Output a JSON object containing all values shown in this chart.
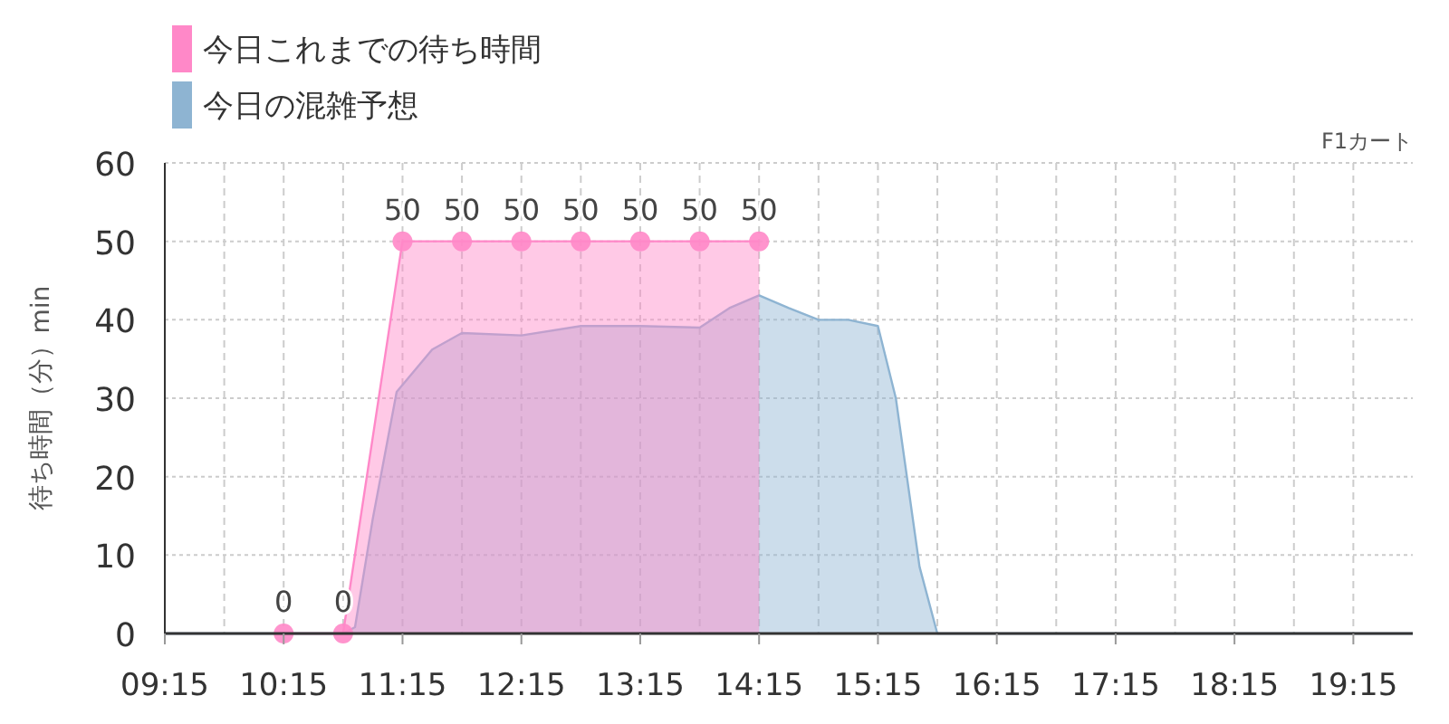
{
  "chart_data": {
    "type": "area",
    "ylabel": "待ち時間（分）min",
    "annotations": [
      "F1カート"
    ],
    "legend": "top left",
    "xlim": [
      9.25,
      19.75
    ],
    "xticks": [
      {
        "value": 9.25,
        "label": "09:15"
      },
      {
        "value": 9.75,
        "label": null
      },
      {
        "value": 10.25,
        "label": "10:15"
      },
      {
        "value": 10.75,
        "label": null
      },
      {
        "value": 11.25,
        "label": "11:15"
      },
      {
        "value": 11.75,
        "label": null
      },
      {
        "value": 12.25,
        "label": "12:15"
      },
      {
        "value": 12.75,
        "label": null
      },
      {
        "value": 13.25,
        "label": "13:15"
      },
      {
        "value": 13.75,
        "label": null
      },
      {
        "value": 14.25,
        "label": "14:15"
      },
      {
        "value": 14.75,
        "label": null
      },
      {
        "value": 15.25,
        "label": "15:15"
      },
      {
        "value": 15.75,
        "label": null
      },
      {
        "value": 16.25,
        "label": "16:15"
      },
      {
        "value": 16.75,
        "label": null
      },
      {
        "value": 17.25,
        "label": "17:15"
      },
      {
        "value": 17.75,
        "label": null
      },
      {
        "value": 18.25,
        "label": "18:15"
      },
      {
        "value": 18.75,
        "label": null
      },
      {
        "value": 19.25,
        "label": "19:15"
      }
    ],
    "ylim": [
      0,
      60
    ],
    "yticks": [
      0,
      10,
      20,
      30,
      40,
      50,
      60
    ],
    "grid": true,
    "series": [
      {
        "name": "今日の混雑予想",
        "color": "#8eb4d2",
        "x": [
          9.25,
          10.25,
          10.75,
          10.85,
          11.0,
          11.2,
          11.5,
          11.75,
          12.25,
          12.75,
          13.25,
          13.75,
          14.0,
          14.25,
          14.5,
          14.75,
          15.0,
          15.25,
          15.4,
          15.6,
          15.75,
          16.0,
          16.25,
          19.75
        ],
        "values": [
          0,
          0,
          0,
          0.8,
          14.6,
          30.8,
          36.2,
          38.3,
          38.0,
          39.2,
          39.2,
          39.0,
          41.5,
          43.1,
          41.5,
          40.0,
          40.0,
          39.2,
          30.0,
          8.5,
          0,
          0,
          0,
          0
        ]
      },
      {
        "name": "今日これまでの待ち時間",
        "color": "#ff88c8",
        "type": "area",
        "marker": "circle",
        "x": [
          10.25,
          10.75,
          11.25,
          11.75,
          12.25,
          12.75,
          13.25,
          13.75,
          14.25
        ],
        "values": [
          0,
          0,
          50,
          50,
          50,
          50,
          50,
          50,
          50
        ],
        "value_labels": [
          "0",
          "0",
          "50",
          "50",
          "50",
          "50",
          "50",
          "50",
          "50"
        ]
      }
    ]
  }
}
